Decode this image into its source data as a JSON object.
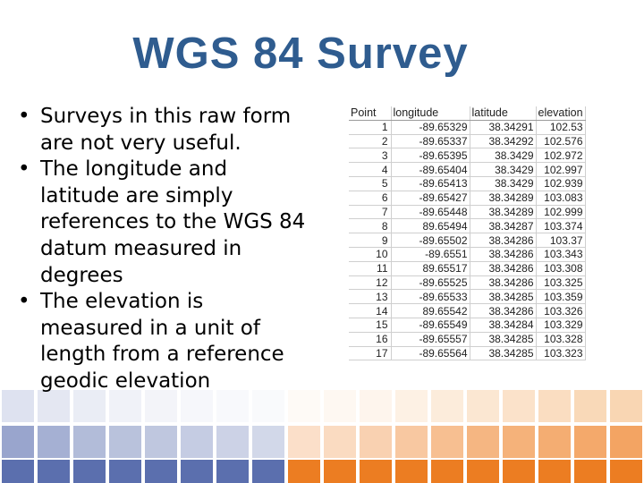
{
  "slide": {
    "title": "WGS 84 Survey",
    "bullets": [
      "Surveys in this raw form are not very useful.",
      "The longitude and latitude are simply references to the WGS 84 datum measured in degrees",
      "The elevation is measured in a unit of length from a reference geodic elevation"
    ]
  },
  "table": {
    "headers": [
      "Point",
      "longitude",
      "latitude",
      "elevation"
    ],
    "rows": [
      [
        "1",
        "-89.65329",
        "38.34291",
        "102.53"
      ],
      [
        "2",
        "-89.65337",
        "38.34292",
        "102.576"
      ],
      [
        "3",
        "-89.65395",
        "38.3429",
        "102.972"
      ],
      [
        "4",
        "-89.65404",
        "38.3429",
        "102.997"
      ],
      [
        "5",
        "-89.65413",
        "38.3429",
        "102.939"
      ],
      [
        "6",
        "-89.65427",
        "38.34289",
        "103.083"
      ],
      [
        "7",
        "-89.65448",
        "38.34289",
        "102.999"
      ],
      [
        "8",
        "89.65494",
        "38.34287",
        "103.374"
      ],
      [
        "9",
        "-89.65502",
        "38.34286",
        "103.37"
      ],
      [
        "10",
        "-89.6551",
        "38.34286",
        "103.343"
      ],
      [
        "11",
        "89.65517",
        "38.34286",
        "103.308"
      ],
      [
        "12",
        "-89.65525",
        "38.34286",
        "103.325"
      ],
      [
        "13",
        "-89.65533",
        "38.34285",
        "103.359"
      ],
      [
        "14",
        "89.65542",
        "38.34286",
        "103.326"
      ],
      [
        "15",
        "-89.65549",
        "38.34284",
        "103.329"
      ],
      [
        "16",
        "-89.65557",
        "38.34285",
        "103.328"
      ],
      [
        "17",
        "-89.65564",
        "38.34285",
        "103.323"
      ]
    ]
  },
  "decoration": {
    "colors": {
      "title": "#2f5c8f",
      "blue_dark": "#5b6fae",
      "blue_mid": "#7f8fc0",
      "blue_light": "#c3cae3",
      "orange_dark": "#ec7d22",
      "orange_mid": "#f3a463",
      "orange_light": "#f8cfa6"
    }
  }
}
